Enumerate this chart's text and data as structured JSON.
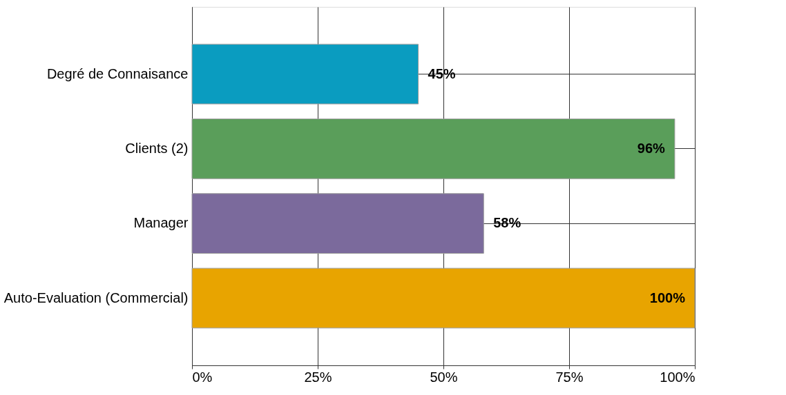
{
  "chart_data": {
    "type": "bar",
    "orientation": "horizontal",
    "categories": [
      "Degré de Connaisance",
      "Clients (2)",
      "Manager",
      "Auto-Evaluation (Commercial)"
    ],
    "values": [
      45,
      96,
      58,
      100
    ],
    "colors": [
      "#0a9cc0",
      "#5a9e5a",
      "#7b6a9c",
      "#e8a400"
    ],
    "value_labels": [
      "45%",
      "96%",
      "58%",
      "100%"
    ],
    "xlim": [
      0,
      100
    ],
    "xticks": [
      {
        "value": 0,
        "label": "0%"
      },
      {
        "value": 25,
        "label": "25%"
      },
      {
        "value": 50,
        "label": "50%"
      },
      {
        "value": 75,
        "label": "75%"
      },
      {
        "value": 100,
        "label": "100%"
      }
    ],
    "grid": true
  }
}
